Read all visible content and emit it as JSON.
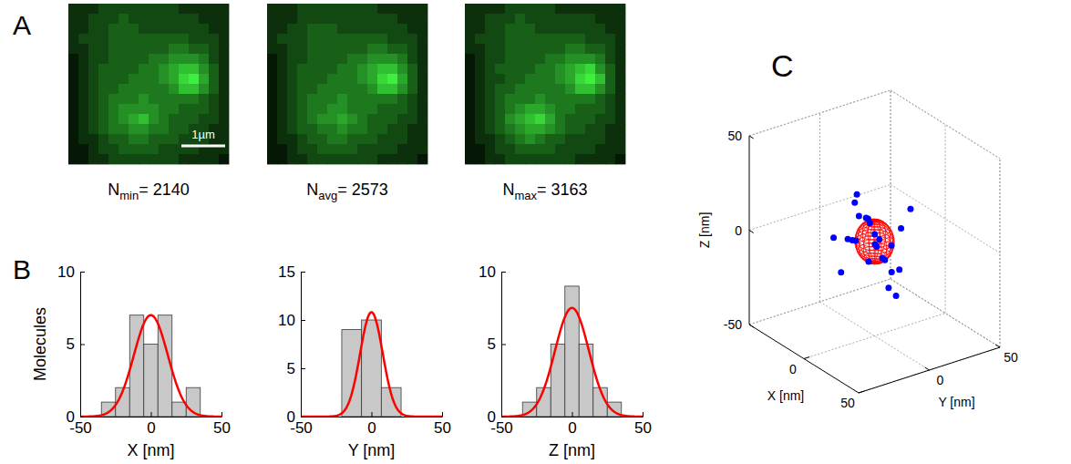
{
  "panel_labels": [
    "A",
    "B",
    "C"
  ],
  "images": {
    "scale_bar_label": "1µm",
    "cell_range": [
      0,
      9
    ],
    "items": [
      {
        "caption": {
          "base": "N",
          "sub": "min",
          "sep": "=",
          "value": 2140
        },
        "cells": [
          [
            1,
            1,
            1,
            2,
            2,
            2,
            2,
            2,
            2,
            2,
            2,
            1,
            1,
            1,
            1,
            1
          ],
          [
            1,
            1,
            2,
            2,
            2,
            3,
            2,
            2,
            2,
            2,
            2,
            2,
            2,
            1,
            1,
            1
          ],
          [
            1,
            1,
            2,
            2,
            3,
            3,
            3,
            2,
            2,
            2,
            2,
            2,
            2,
            2,
            1,
            1
          ],
          [
            1,
            2,
            2,
            2,
            3,
            3,
            3,
            3,
            3,
            3,
            3,
            3,
            2,
            2,
            2,
            1
          ],
          [
            1,
            1,
            2,
            2,
            3,
            3,
            3,
            3,
            3,
            3,
            4,
            4,
            3,
            3,
            2,
            1
          ],
          [
            0,
            1,
            2,
            2,
            3,
            3,
            3,
            3,
            4,
            4,
            5,
            5,
            5,
            4,
            2,
            1
          ],
          [
            0,
            1,
            2,
            3,
            3,
            3,
            3,
            4,
            4,
            5,
            6,
            7,
            7,
            5,
            3,
            1
          ],
          [
            0,
            1,
            2,
            3,
            3,
            3,
            4,
            4,
            4,
            5,
            6,
            8,
            9,
            6,
            3,
            1
          ],
          [
            0,
            1,
            2,
            3,
            3,
            4,
            4,
            4,
            4,
            4,
            5,
            7,
            7,
            5,
            3,
            1
          ],
          [
            0,
            1,
            2,
            3,
            4,
            4,
            4,
            5,
            4,
            4,
            4,
            4,
            4,
            3,
            2,
            1
          ],
          [
            0,
            1,
            2,
            3,
            4,
            5,
            5,
            5,
            5,
            4,
            4,
            3,
            3,
            3,
            2,
            1
          ],
          [
            0,
            1,
            2,
            3,
            4,
            5,
            6,
            7,
            5,
            4,
            3,
            3,
            3,
            2,
            2,
            1
          ],
          [
            0,
            1,
            2,
            3,
            4,
            4,
            5,
            5,
            4,
            4,
            3,
            3,
            2,
            2,
            1,
            1
          ],
          [
            0,
            1,
            1,
            2,
            3,
            3,
            4,
            4,
            3,
            3,
            3,
            2,
            2,
            2,
            1,
            1
          ],
          [
            0,
            0,
            1,
            2,
            2,
            3,
            3,
            3,
            3,
            2,
            2,
            2,
            2,
            1,
            1,
            1
          ],
          [
            0,
            0,
            1,
            1,
            2,
            2,
            2,
            2,
            2,
            2,
            2,
            1,
            1,
            1,
            1,
            0
          ]
        ]
      },
      {
        "caption": {
          "base": "N",
          "sub": "avg",
          "sep": "=",
          "value": 2573
        },
        "cells": [
          [
            1,
            1,
            1,
            2,
            2,
            2,
            2,
            2,
            2,
            2,
            2,
            1,
            1,
            1,
            1,
            1
          ],
          [
            1,
            1,
            1,
            2,
            2,
            2,
            2,
            2,
            2,
            2,
            2,
            2,
            2,
            1,
            1,
            1
          ],
          [
            1,
            1,
            2,
            2,
            3,
            3,
            3,
            2,
            2,
            2,
            2,
            2,
            2,
            2,
            1,
            1
          ],
          [
            1,
            2,
            2,
            2,
            3,
            3,
            3,
            3,
            3,
            3,
            3,
            3,
            2,
            2,
            2,
            1
          ],
          [
            1,
            1,
            2,
            2,
            3,
            3,
            3,
            3,
            3,
            3,
            4,
            4,
            3,
            3,
            2,
            1
          ],
          [
            0,
            1,
            2,
            2,
            3,
            3,
            3,
            3,
            4,
            4,
            5,
            5,
            5,
            4,
            2,
            1
          ],
          [
            0,
            1,
            2,
            3,
            3,
            3,
            3,
            4,
            4,
            5,
            6,
            7,
            7,
            5,
            3,
            1
          ],
          [
            0,
            1,
            2,
            3,
            3,
            3,
            4,
            4,
            4,
            5,
            6,
            8,
            9,
            6,
            3,
            1
          ],
          [
            0,
            1,
            2,
            3,
            3,
            4,
            4,
            4,
            4,
            4,
            5,
            7,
            7,
            5,
            3,
            1
          ],
          [
            0,
            1,
            2,
            3,
            4,
            4,
            4,
            5,
            4,
            4,
            4,
            4,
            4,
            3,
            2,
            1
          ],
          [
            0,
            1,
            2,
            3,
            4,
            4,
            5,
            5,
            4,
            4,
            4,
            3,
            3,
            3,
            2,
            1
          ],
          [
            0,
            1,
            2,
            3,
            4,
            5,
            5,
            6,
            5,
            4,
            3,
            3,
            3,
            2,
            2,
            1
          ],
          [
            0,
            1,
            2,
            3,
            3,
            4,
            4,
            5,
            4,
            4,
            3,
            3,
            2,
            2,
            1,
            1
          ],
          [
            0,
            1,
            1,
            2,
            3,
            3,
            4,
            4,
            3,
            3,
            3,
            2,
            2,
            2,
            1,
            1
          ],
          [
            0,
            0,
            1,
            2,
            2,
            3,
            3,
            3,
            3,
            2,
            2,
            2,
            2,
            1,
            1,
            1
          ],
          [
            0,
            0,
            1,
            1,
            2,
            2,
            2,
            2,
            2,
            2,
            2,
            1,
            1,
            1,
            1,
            0
          ]
        ]
      },
      {
        "caption": {
          "base": "N",
          "sub": "max",
          "sep": "=",
          "value": 3163
        },
        "cells": [
          [
            1,
            1,
            1,
            1,
            2,
            2,
            2,
            2,
            2,
            1,
            1,
            1,
            1,
            1,
            1,
            1
          ],
          [
            1,
            1,
            2,
            2,
            2,
            3,
            2,
            2,
            2,
            2,
            2,
            2,
            2,
            1,
            1,
            1
          ],
          [
            1,
            1,
            2,
            2,
            3,
            3,
            3,
            2,
            2,
            2,
            2,
            2,
            2,
            2,
            1,
            1
          ],
          [
            1,
            2,
            2,
            2,
            3,
            3,
            3,
            3,
            3,
            3,
            3,
            3,
            2,
            2,
            2,
            1
          ],
          [
            1,
            1,
            2,
            2,
            3,
            3,
            3,
            3,
            3,
            3,
            4,
            4,
            3,
            3,
            2,
            1
          ],
          [
            0,
            1,
            2,
            2,
            3,
            3,
            3,
            3,
            4,
            4,
            5,
            5,
            5,
            4,
            2,
            1
          ],
          [
            0,
            1,
            2,
            3,
            3,
            3,
            3,
            4,
            4,
            5,
            6,
            7,
            8,
            5,
            3,
            1
          ],
          [
            0,
            1,
            2,
            2,
            3,
            3,
            4,
            4,
            4,
            5,
            6,
            8,
            9,
            7,
            3,
            1
          ],
          [
            0,
            1,
            2,
            3,
            3,
            4,
            4,
            4,
            4,
            4,
            5,
            7,
            7,
            5,
            3,
            1
          ],
          [
            0,
            1,
            2,
            3,
            4,
            4,
            4,
            5,
            4,
            4,
            4,
            4,
            4,
            3,
            2,
            1
          ],
          [
            0,
            1,
            2,
            3,
            4,
            5,
            6,
            6,
            5,
            4,
            4,
            3,
            3,
            3,
            2,
            1
          ],
          [
            0,
            1,
            2,
            3,
            5,
            6,
            7,
            8,
            6,
            4,
            3,
            3,
            3,
            2,
            2,
            1
          ],
          [
            0,
            1,
            2,
            3,
            4,
            5,
            6,
            6,
            5,
            4,
            3,
            3,
            2,
            2,
            1,
            1
          ],
          [
            0,
            1,
            1,
            2,
            3,
            4,
            5,
            4,
            3,
            3,
            2,
            2,
            2,
            2,
            1,
            1
          ],
          [
            0,
            0,
            1,
            2,
            2,
            3,
            3,
            3,
            3,
            2,
            2,
            2,
            2,
            1,
            1,
            1
          ],
          [
            0,
            0,
            1,
            1,
            2,
            2,
            2,
            2,
            2,
            2,
            2,
            1,
            1,
            1,
            1,
            0
          ]
        ]
      }
    ]
  },
  "chart_data": [
    {
      "type": "histogram",
      "xlabel": "X [nm]",
      "ylabel": "Molecules",
      "bins": [
        -35,
        -25,
        -15,
        -5,
        5,
        15,
        25,
        35
      ],
      "counts": [
        1,
        2,
        7,
        5,
        7,
        1,
        2
      ],
      "color": "#c8c8c8",
      "xlim": [
        -50,
        50
      ],
      "xticks": [
        -50,
        0,
        50
      ],
      "ylim": [
        0,
        10
      ],
      "yticks": [
        0,
        5,
        10
      ],
      "fit": {
        "amplitude": 7,
        "mean": 0,
        "sigma": 12,
        "color": "#ff0000"
      }
    },
    {
      "type": "histogram",
      "xlabel": "Y [nm]",
      "bins": [
        -21,
        -7,
        7,
        21
      ],
      "counts": [
        9,
        10,
        3
      ],
      "color": "#c8c8c8",
      "xlim": [
        -50,
        50
      ],
      "xticks": [
        -50,
        0,
        50
      ],
      "ylim": [
        0,
        15
      ],
      "yticks": [
        0,
        5,
        10,
        15
      ],
      "fit": {
        "amplitude": 10.8,
        "mean": 0,
        "sigma": 8,
        "color": "#ff0000"
      }
    },
    {
      "type": "histogram",
      "xlabel": "Z [nm]",
      "bins": [
        -35,
        -25,
        -15,
        -5,
        5,
        15,
        25,
        35
      ],
      "counts": [
        1,
        2,
        5,
        9,
        5,
        2,
        1
      ],
      "color": "#c8c8c8",
      "xlim": [
        -50,
        50
      ],
      "xticks": [
        -50,
        0,
        50
      ],
      "ylim": [
        0,
        10
      ],
      "yticks": [
        0,
        5,
        10
      ],
      "fit": {
        "amplitude": 7.5,
        "mean": 0,
        "sigma": 12,
        "color": "#ff0000"
      }
    },
    {
      "type": "scatter3d",
      "xlabel": "X [nm]",
      "ylabel": "Y [nm]",
      "zlabel": "Z [nm]",
      "xlim": [
        -50,
        50
      ],
      "ylim": [
        -50,
        50
      ],
      "zlim": [
        -50,
        50
      ],
      "xticks": [
        0,
        50
      ],
      "yticks": [
        0,
        50
      ],
      "zticks": [
        -50,
        0,
        50
      ],
      "grid": true,
      "color": "#0000ff",
      "marker": "dot",
      "x": [
        -31,
        -22,
        -19,
        -12,
        -9,
        -8,
        -11,
        -6,
        -13,
        -10,
        -3,
        2,
        0,
        -1,
        4,
        8,
        11,
        13,
        7,
        9,
        12,
        10,
        18,
        29,
        33
      ],
      "y": [
        -5,
        3,
        -9,
        6,
        -12,
        2,
        -4,
        8,
        -1,
        -8,
        -11,
        4,
        -6,
        1,
        -3,
        9,
        -7,
        2,
        -10,
        5,
        -2,
        11,
        -4,
        3,
        -8
      ],
      "z": [
        -8,
        12,
        -21,
        4,
        1,
        -14,
        22,
        -3,
        9,
        -1,
        2,
        -9,
        14,
        -2,
        6,
        -28,
        3,
        -12,
        17,
        0,
        -5,
        8,
        -17,
        27,
        -1
      ],
      "sphere": {
        "center": [
          0,
          0,
          0
        ],
        "radius": 11,
        "color": "#ff0000"
      }
    }
  ]
}
